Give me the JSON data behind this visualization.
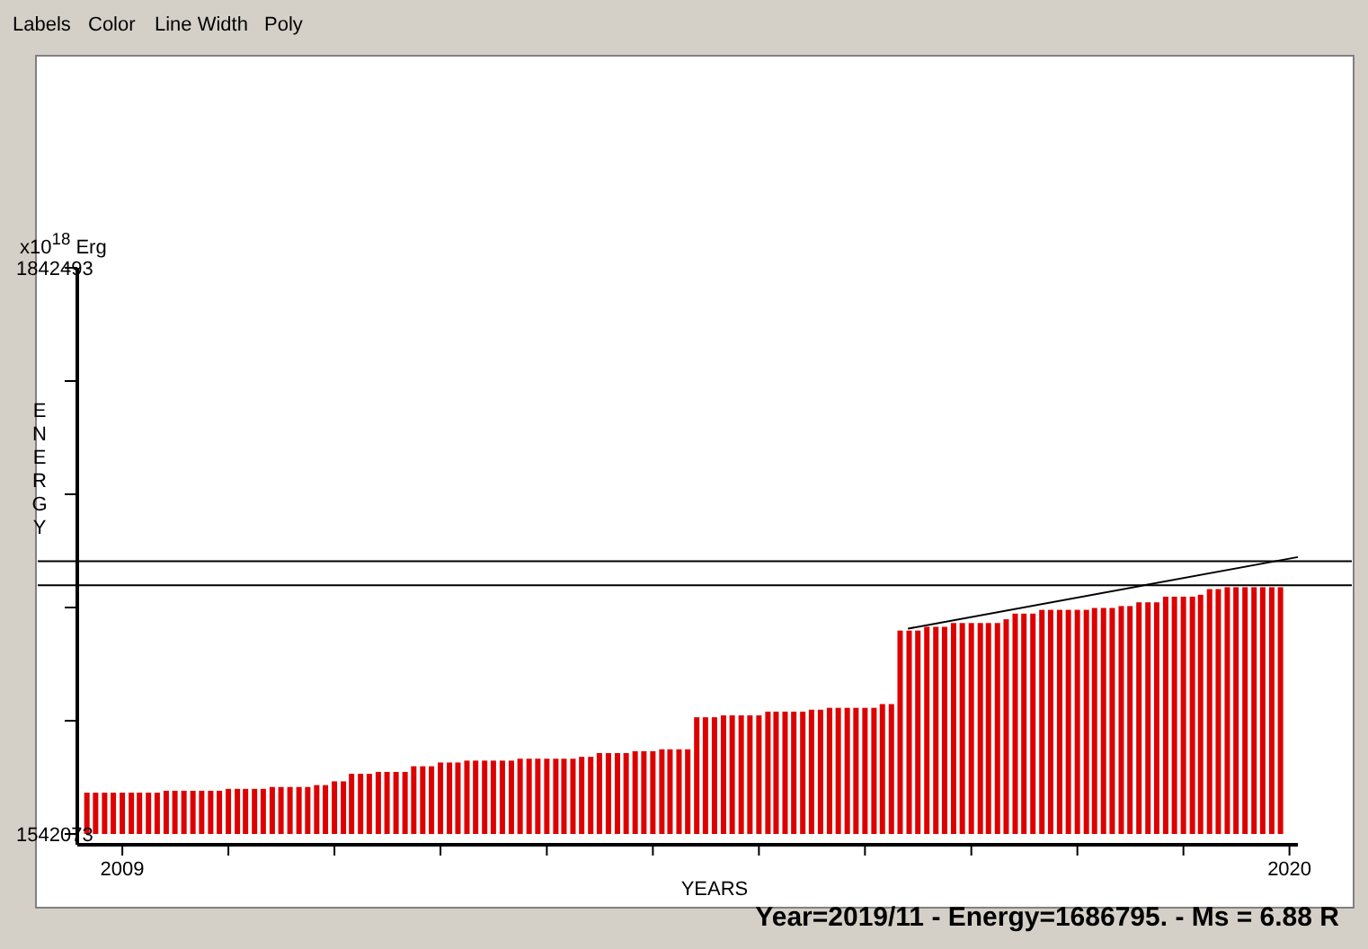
{
  "chart_data": {
    "type": "bar",
    "xlabel": "YEARS",
    "ylabel": "ENERGY",
    "annotations": [
      "Labels",
      "Color",
      "Line Width",
      "Poly",
      "x10$^{18}$ Erg",
      "Year=2019/11 - Energy=1686795. - Ms = 6.88 R"
    ],
    "x": [
      "2008-09",
      "2008-10",
      "2008-11",
      "2008-12",
      "2009-01",
      "2009-02",
      "2009-03",
      "2009-04",
      "2009-05",
      "2009-06",
      "2009-07",
      "2009-08",
      "2009-09",
      "2009-10",
      "2009-11",
      "2009-12",
      "2010-01",
      "2010-02",
      "2010-03",
      "2010-04",
      "2010-05",
      "2010-06",
      "2010-07",
      "2010-08",
      "2010-09",
      "2010-10",
      "2010-11",
      "2010-12",
      "2011-01",
      "2011-02",
      "2011-03",
      "2011-04",
      "2011-05",
      "2011-06",
      "2011-07",
      "2011-08",
      "2011-09",
      "2011-10",
      "2011-11",
      "2011-12",
      "2012-01",
      "2012-02",
      "2012-03",
      "2012-04",
      "2012-05",
      "2012-06",
      "2012-07",
      "2012-08",
      "2012-09",
      "2012-10",
      "2012-11",
      "2012-12",
      "2013-01",
      "2013-02",
      "2013-03",
      "2013-04",
      "2013-05",
      "2013-06",
      "2013-07",
      "2013-08",
      "2013-09",
      "2013-10",
      "2013-11",
      "2013-12",
      "2014-01",
      "2014-02",
      "2014-03",
      "2014-04",
      "2014-05",
      "2014-06",
      "2014-07",
      "2014-08",
      "2014-09",
      "2014-10",
      "2014-11",
      "2014-12",
      "2015-01",
      "2015-02",
      "2015-03",
      "2015-04",
      "2015-05",
      "2015-06",
      "2015-07",
      "2015-08",
      "2015-09",
      "2015-10",
      "2015-11",
      "2015-12",
      "2016-01",
      "2016-02",
      "2016-03",
      "2016-04",
      "2016-05",
      "2016-06",
      "2016-07",
      "2016-08",
      "2016-09",
      "2016-10",
      "2016-11",
      "2016-12",
      "2017-01",
      "2017-02",
      "2017-03",
      "2017-04",
      "2017-05",
      "2017-06",
      "2017-07",
      "2017-08",
      "2017-09",
      "2017-10",
      "2017-11",
      "2017-12",
      "2018-01",
      "2018-02",
      "2018-03",
      "2018-04",
      "2018-05",
      "2018-06",
      "2018-07",
      "2018-08",
      "2018-09",
      "2018-10",
      "2018-11",
      "2018-12",
      "2019-01",
      "2019-02",
      "2019-03",
      "2019-04",
      "2019-05",
      "2019-06",
      "2019-07",
      "2019-08",
      "2019-09",
      "2019-10",
      "2019-11",
      "2019-12"
    ],
    "series": [
      {
        "color": "#dd0000",
        "values": [
          1564000,
          1564000,
          1564000,
          1564000,
          1564000,
          1564000,
          1564000,
          1564000,
          1564000,
          1565000,
          1565000,
          1565000,
          1565000,
          1565000,
          1565000,
          1565000,
          1566000,
          1566000,
          1566000,
          1566000,
          1566000,
          1567000,
          1567000,
          1567000,
          1567000,
          1567000,
          1568000,
          1568000,
          1570000,
          1570000,
          1574000,
          1574000,
          1574000,
          1575000,
          1575000,
          1575000,
          1575000,
          1578000,
          1578000,
          1578000,
          1580000,
          1580000,
          1580000,
          1581000,
          1581000,
          1581000,
          1581000,
          1581000,
          1581000,
          1582000,
          1582000,
          1582000,
          1582000,
          1582000,
          1582000,
          1582000,
          1583000,
          1583000,
          1585000,
          1585000,
          1585000,
          1585000,
          1586000,
          1586000,
          1586000,
          1587000,
          1587000,
          1587000,
          1587000,
          1604000,
          1604000,
          1604000,
          1605000,
          1605000,
          1605000,
          1605000,
          1605000,
          1607000,
          1607000,
          1607000,
          1607000,
          1607000,
          1608000,
          1608000,
          1609000,
          1609000,
          1609000,
          1609000,
          1609000,
          1609000,
          1611000,
          1611000,
          1650000,
          1650000,
          1650000,
          1652000,
          1652000,
          1652000,
          1654000,
          1654000,
          1654000,
          1654000,
          1654000,
          1654000,
          1656000,
          1659000,
          1659000,
          1659000,
          1661000,
          1661000,
          1661000,
          1661000,
          1661000,
          1661000,
          1662000,
          1662000,
          1662000,
          1663000,
          1663000,
          1665000,
          1665000,
          1665000,
          1668000,
          1668000,
          1668000,
          1668000,
          1669000,
          1672000,
          1672000,
          1673000,
          1673000,
          1673000,
          1673000,
          1673000,
          1673000,
          1673000
        ]
      },
      {
        "type": "line",
        "color": "#000000",
        "x": [
          "2016-05-28",
          "2020-01-30"
        ],
        "values": [
          1651000,
          1689000
        ]
      }
    ],
    "xlim": [
      "2008-07-30",
      "2020-01-30"
    ],
    "xticks": [
      {
        "value": "2009",
        "label": "2009"
      },
      {
        "value": "2010",
        "label": null
      },
      {
        "value": "2011",
        "label": null
      },
      {
        "value": "2012",
        "label": null
      },
      {
        "value": "2013",
        "label": null
      },
      {
        "value": "2014",
        "label": null
      },
      {
        "value": "2015",
        "label": null
      },
      {
        "value": "2016",
        "label": null
      },
      {
        "value": "2017",
        "label": null
      },
      {
        "value": "2018",
        "label": null
      },
      {
        "value": "2019",
        "label": null
      },
      {
        "value": "2020",
        "label": "2020"
      }
    ],
    "ylim": [
      1542073,
      1842493
    ],
    "yticks": [
      1542073,
      {
        "value": 1602157,
        "label": null
      },
      {
        "value": 1662241,
        "label": null
      },
      {
        "value": 1722325,
        "label": null
      },
      {
        "value": 1782409,
        "label": null
      },
      1842493
    ],
    "ref_lines": [
      {
        "axis": "y",
        "value": 1686795,
        "color": "#000000"
      },
      {
        "axis": "y",
        "value": 1674000,
        "color": "#000000"
      }
    ],
    "grid": false
  }
}
